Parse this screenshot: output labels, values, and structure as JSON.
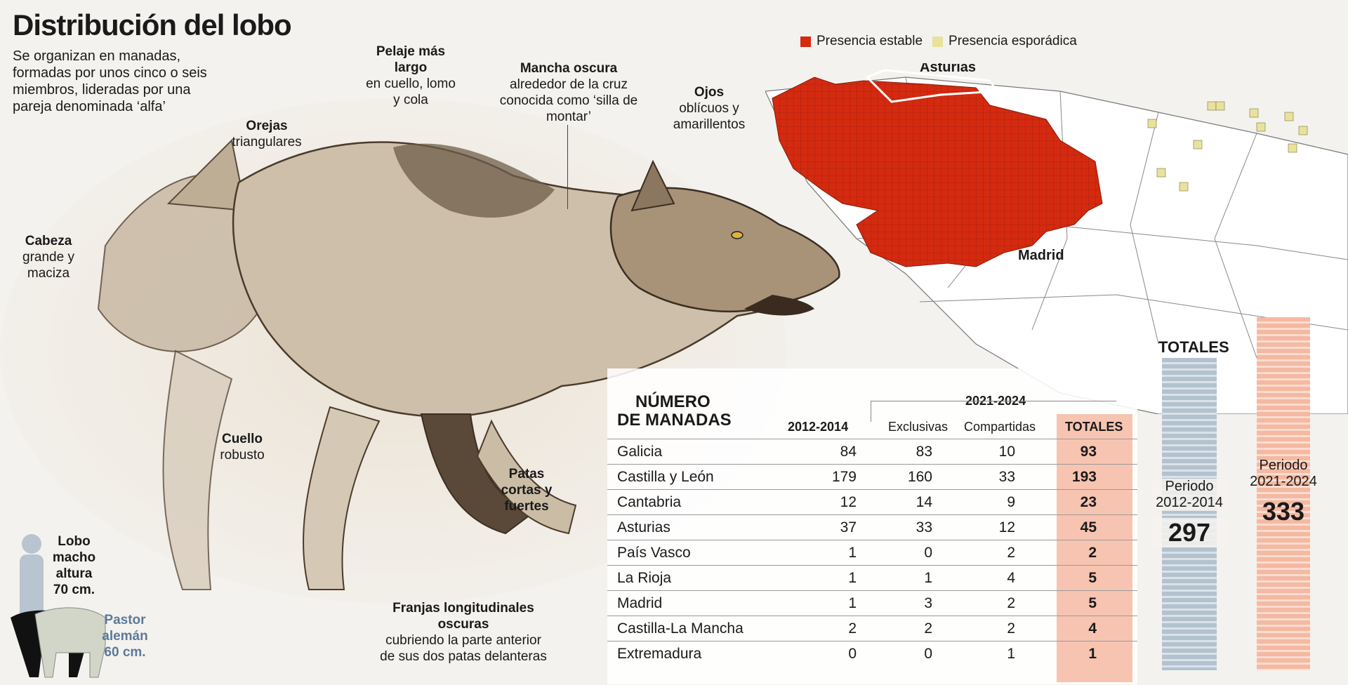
{
  "title": "Distribución del lobo",
  "subtitle": "Se organizan en manadas, formadas por unos cinco o seis miembros, lideradas por una pareja denominada ‘alfa’",
  "annotations": {
    "cabeza": {
      "bold": "Cabeza",
      "text": "grande y maciza"
    },
    "orejas": {
      "bold": "Orejas",
      "text": "triangulares"
    },
    "pelaje": {
      "bold": "Pelaje más largo",
      "text": "en cuello, lomo y cola"
    },
    "mancha": {
      "bold": "Mancha oscura",
      "text": "alrededor de la cruz conocida como ‘silla de montar’"
    },
    "ojos": {
      "bold": "Ojos",
      "text": "oblícuos y amarillentos"
    },
    "cuello": {
      "bold": "Cuello",
      "text": "robusto"
    },
    "patas": {
      "bold": "Patas cortas y fuertes",
      "text": ""
    },
    "franjas": {
      "bold": "Franjas longitudinales oscuras",
      "text": "cubriendo la parte anterior de sus dos patas delanteras"
    },
    "lobo_size": "Lobo macho altura 70 cm.",
    "pastor_size": "Pastor alemán 60 cm."
  },
  "legend": {
    "stable_label": "Presencia estable",
    "stable_color": "#d42a10",
    "sporadic_label": "Presencia esporádica",
    "sporadic_color": "#e8e29c"
  },
  "map_labels": {
    "asturias": "Asturias",
    "madrid": "Madrid"
  },
  "table": {
    "heading_line1": "NÚMERO",
    "heading_line2": "DE MANADAS",
    "period_group": "2021-2024",
    "columns": [
      "2012-2014",
      "Exclusivas",
      "Compartidas",
      "TOTALES"
    ],
    "rows": [
      {
        "region": "Galicia",
        "p2012": "84",
        "excl": "83",
        "comp": "10",
        "total": "93"
      },
      {
        "region": "Castilla y León",
        "p2012": "179",
        "excl": "160",
        "comp": "33",
        "total": "193"
      },
      {
        "region": "Cantabria",
        "p2012": "12",
        "excl": "14",
        "comp": "9",
        "total": "23"
      },
      {
        "region": "Asturias",
        "p2012": "37",
        "excl": "33",
        "comp": "12",
        "total": "45"
      },
      {
        "region": "País Vasco",
        "p2012": "1",
        "excl": "0",
        "comp": "2",
        "total": "2"
      },
      {
        "region": "La Rioja",
        "p2012": "1",
        "excl": "1",
        "comp": "4",
        "total": "5"
      },
      {
        "region": "Madrid",
        "p2012": "1",
        "excl": "3",
        "comp": "2",
        "total": "5"
      },
      {
        "region": "Castilla-La Mancha",
        "p2012": "2",
        "excl": "2",
        "comp": "2",
        "total": "4"
      },
      {
        "region": "Extremadura",
        "p2012": "0",
        "excl": "0",
        "comp": "1",
        "total": "1"
      }
    ]
  },
  "totals": {
    "label": "TOTALES",
    "p1_label": "Periodo 2012-2014",
    "p1_value": "297",
    "p2_label": "Periodo 2021-2024",
    "p2_value": "333"
  }
}
